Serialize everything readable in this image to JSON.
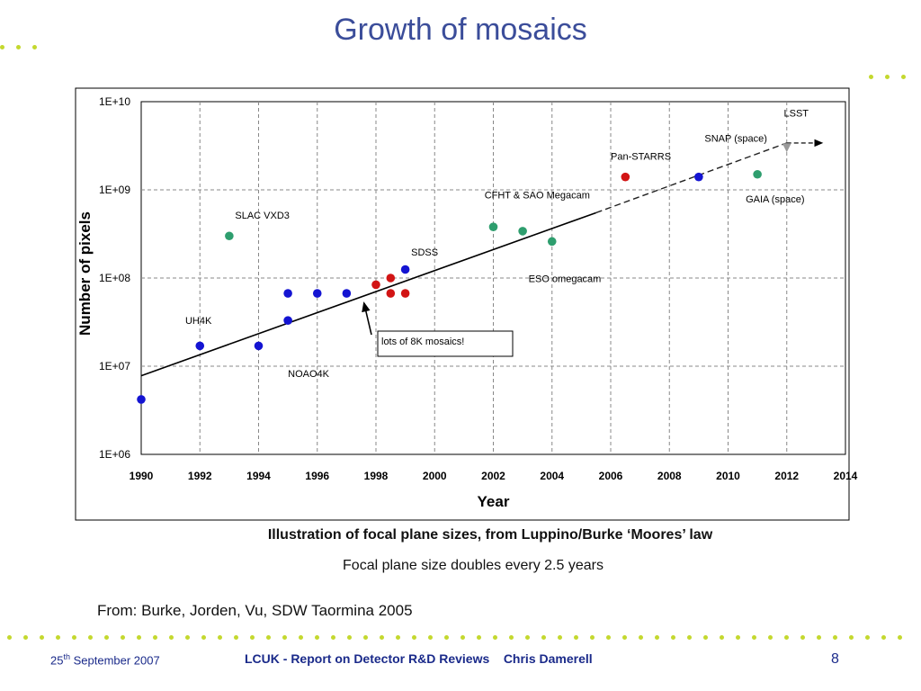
{
  "slide": {
    "title": "Growth of mosaics",
    "caption_main": "Illustration of focal plane sizes, from Luppino/Burke ‘Moores’ law",
    "caption_sub": "Focal plane size doubles every 2.5 years",
    "source": "From: Burke, Jorden, Vu,  SDW Taormina 2005",
    "accent_color": "#c4d82e",
    "title_color": "#3b4d9a"
  },
  "footer": {
    "date_day": "25",
    "date_suffix": "th",
    "date_rest": " September 2007",
    "center": "LCUK - Report on Detector R&D Reviews    Chris Damerell",
    "page": "8"
  },
  "chart_data": {
    "type": "scatter",
    "xlabel": "Year",
    "ylabel": "Number of pixels",
    "xlim": [
      1990,
      2014
    ],
    "ylim": [
      1000000,
      10000000000
    ],
    "yscale": "log",
    "grid": true,
    "x_ticks": [
      "1990",
      "1992",
      "1994",
      "1996",
      "1998",
      "2000",
      "2002",
      "2004",
      "2006",
      "2008",
      "2010",
      "2012",
      "2014"
    ],
    "y_ticks": [
      "1E+06",
      "1E+07",
      "1E+08",
      "1E+09",
      "1E+10"
    ],
    "colors": {
      "blue": "#1414d2",
      "green": "#2e9e6e",
      "red": "#d21414",
      "grey": "#9a9a9a"
    },
    "series": [
      {
        "color": "blue",
        "points": [
          {
            "x": 1990,
            "y": 4200000
          },
          {
            "x": 1992,
            "y": 17000000
          },
          {
            "x": 1994,
            "y": 17000000
          },
          {
            "x": 1995,
            "y": 33000000
          },
          {
            "x": 1995,
            "y": 67000000
          },
          {
            "x": 1996,
            "y": 67000000
          },
          {
            "x": 1997,
            "y": 67000000
          },
          {
            "x": 1999,
            "y": 125000000
          },
          {
            "x": 2009,
            "y": 1400000000
          }
        ]
      },
      {
        "color": "green",
        "points": [
          {
            "x": 1993,
            "y": 300000000
          },
          {
            "x": 2002,
            "y": 380000000
          },
          {
            "x": 2003,
            "y": 340000000
          },
          {
            "x": 2004,
            "y": 260000000
          },
          {
            "x": 2011,
            "y": 1500000000
          }
        ]
      },
      {
        "color": "red",
        "points": [
          {
            "x": 1998,
            "y": 84000000
          },
          {
            "x": 1998.5,
            "y": 67000000
          },
          {
            "x": 1998.5,
            "y": 100000000
          },
          {
            "x": 1999,
            "y": 67000000
          },
          {
            "x": 2006.5,
            "y": 1400000000
          }
        ]
      },
      {
        "color": "grey",
        "points": [
          {
            "x": 2012,
            "y": 3000000000
          }
        ]
      }
    ],
    "trend_line": {
      "x": [
        1990,
        2005.5
      ],
      "y": [
        7800000,
        550000000
      ],
      "style": "solid"
    },
    "trend_projection": {
      "x": [
        2005.5,
        2012
      ],
      "y": [
        550000000,
        3400000000
      ],
      "style": "dashed"
    },
    "trend_arrow": {
      "x": [
        2012,
        2013.2
      ],
      "y": [
        3400000000,
        3400000000
      ]
    },
    "annotations": [
      {
        "text": "SLAC VXD3",
        "x": 1993.2,
        "y": 470000000
      },
      {
        "text": "UH4K",
        "x": 1991.5,
        "y": 30000000
      },
      {
        "text": "NOAO4K",
        "x": 1995.0,
        "y": 7500000
      },
      {
        "text": "SDSS",
        "x": 1999.2,
        "y": 180000000
      },
      {
        "text": "CFHT & SAO Megacam",
        "x": 2001.7,
        "y": 800000000
      },
      {
        "text": "ESO omegacam",
        "x": 2003.2,
        "y": 90000000
      },
      {
        "text": "Pan-STARRS",
        "x": 2006.0,
        "y": 2200000000
      },
      {
        "text": "SNAP (space)",
        "x": 2009.2,
        "y": 3500000000
      },
      {
        "text": "LSST",
        "x": 2011.9,
        "y": 6800000000
      },
      {
        "text": "GAIA (space)",
        "x": 2010.6,
        "y": 720000000
      }
    ],
    "callout": {
      "text": "lots of 8K mosaics!",
      "arrow_to": {
        "x": 1997.5,
        "y": 60000000
      }
    }
  }
}
